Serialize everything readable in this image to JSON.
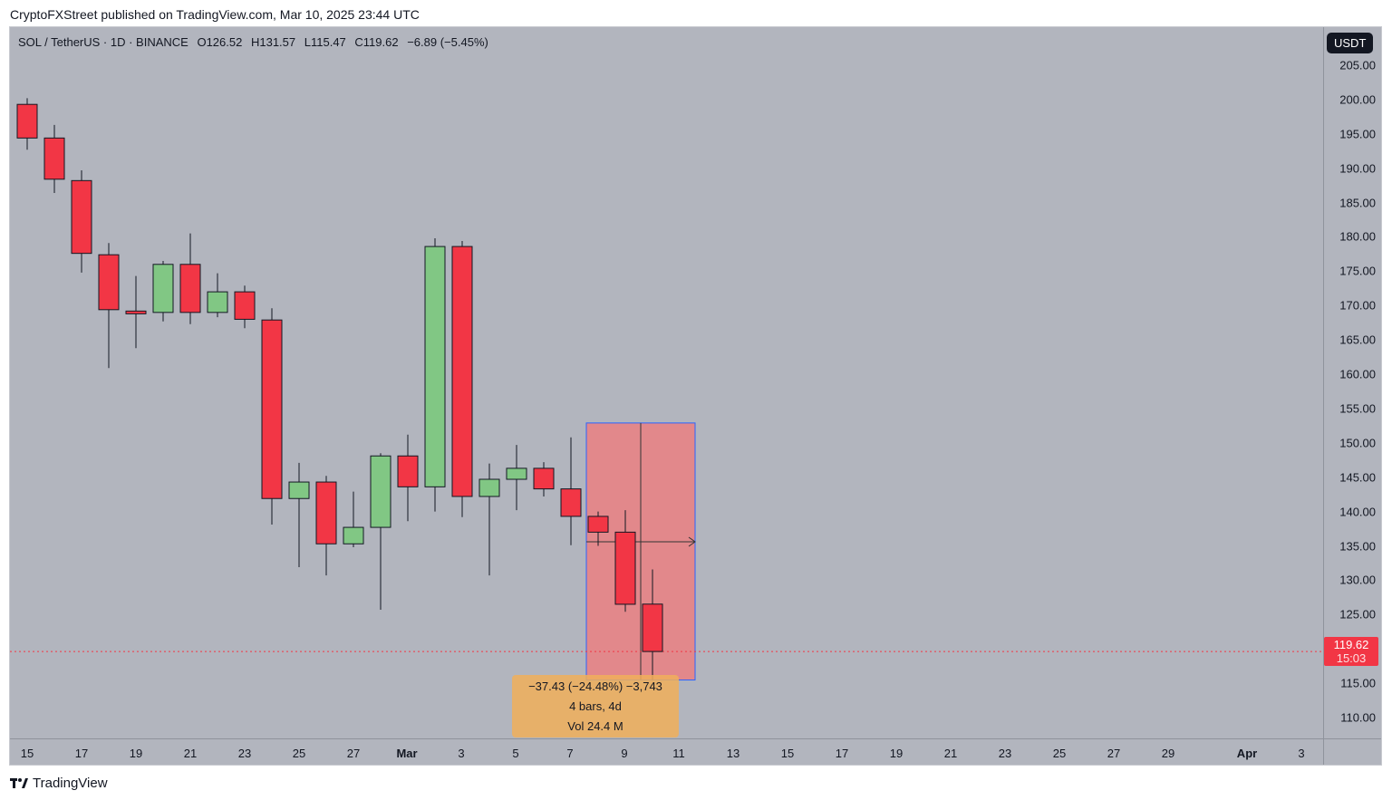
{
  "publisher_line": "CryptoFXStreet published on TradingView.com, Mar 10, 2025 23:44 UTC",
  "legend": {
    "symbol": "SOL / TetherUS · 1D · BINANCE",
    "open": "O126.52",
    "high": "H131.57",
    "low": "L115.47",
    "close": "C119.62",
    "change": "−6.89 (−5.45%)"
  },
  "currency_button": "USDT",
  "last_price": {
    "price": "119.62",
    "countdown": "15:03"
  },
  "measure": {
    "line1": "−37.43 (−24.48%) −3,743",
    "line2": "4 bars, 4d",
    "line3": "Vol 24.4 M"
  },
  "footer_brand": "TradingView",
  "colors": {
    "up": "#81c784",
    "down": "#f23645",
    "background": "#b2b5be",
    "measure_fill": "#f27a7a"
  },
  "chart_data": {
    "type": "candlestick",
    "ylim": [
      107,
      208
    ],
    "price_ticks": [
      "205.00",
      "200.00",
      "195.00",
      "190.00",
      "185.00",
      "180.00",
      "175.00",
      "170.00",
      "165.00",
      "160.00",
      "155.00",
      "150.00",
      "145.00",
      "140.00",
      "135.00",
      "130.00",
      "125.00",
      "120.00",
      "115.00",
      "110.00"
    ],
    "time_ticks": [
      "15",
      "17",
      "19",
      "21",
      "23",
      "25",
      "27",
      "Mar",
      "3",
      "5",
      "7",
      "9",
      "11",
      "13",
      "15",
      "17",
      "19",
      "21",
      "23",
      "25",
      "27",
      "29",
      "Apr",
      "3"
    ],
    "candles": [
      {
        "d": "Feb 15",
        "o": 199.3,
        "h": 200.2,
        "l": 192.7,
        "c": 194.4
      },
      {
        "d": "Feb 16",
        "o": 194.4,
        "h": 196.3,
        "l": 186.4,
        "c": 188.4
      },
      {
        "d": "Feb 17",
        "o": 188.2,
        "h": 189.7,
        "l": 174.8,
        "c": 177.6
      },
      {
        "d": "Feb 18",
        "o": 177.4,
        "h": 179.1,
        "l": 160.9,
        "c": 169.4
      },
      {
        "d": "Feb 19",
        "o": 169.2,
        "h": 174.3,
        "l": 163.8,
        "c": 168.8
      },
      {
        "d": "Feb 20",
        "o": 169.0,
        "h": 176.5,
        "l": 167.7,
        "c": 176.0
      },
      {
        "d": "Feb 21",
        "o": 176.0,
        "h": 180.5,
        "l": 167.3,
        "c": 169.0
      },
      {
        "d": "Feb 22",
        "o": 169.0,
        "h": 174.7,
        "l": 168.3,
        "c": 172.0
      },
      {
        "d": "Feb 23",
        "o": 172.0,
        "h": 172.9,
        "l": 166.7,
        "c": 168.0
      },
      {
        "d": "Feb 24",
        "o": 167.9,
        "h": 169.6,
        "l": 138.1,
        "c": 141.9
      },
      {
        "d": "Feb 25",
        "o": 141.9,
        "h": 147.1,
        "l": 131.9,
        "c": 144.3
      },
      {
        "d": "Feb 26",
        "o": 144.3,
        "h": 145.2,
        "l": 130.7,
        "c": 135.3
      },
      {
        "d": "Feb 27",
        "o": 135.3,
        "h": 142.9,
        "l": 134.8,
        "c": 137.7
      },
      {
        "d": "Feb 28",
        "o": 137.7,
        "h": 148.5,
        "l": 125.7,
        "c": 148.1
      },
      {
        "d": "Mar 1",
        "o": 148.1,
        "h": 151.2,
        "l": 138.6,
        "c": 143.6
      },
      {
        "d": "Mar 2",
        "o": 143.6,
        "h": 179.8,
        "l": 140.0,
        "c": 178.6
      },
      {
        "d": "Mar 3",
        "o": 178.6,
        "h": 179.4,
        "l": 139.2,
        "c": 142.2
      },
      {
        "d": "Mar 4",
        "o": 142.2,
        "h": 147.0,
        "l": 130.7,
        "c": 144.7
      },
      {
        "d": "Mar 5",
        "o": 144.7,
        "h": 149.7,
        "l": 140.2,
        "c": 146.3
      },
      {
        "d": "Mar 6",
        "o": 146.3,
        "h": 147.2,
        "l": 142.2,
        "c": 143.3
      },
      {
        "d": "Mar 7",
        "o": 143.3,
        "h": 150.8,
        "l": 135.1,
        "c": 139.3
      },
      {
        "d": "Mar 8",
        "o": 139.3,
        "h": 140.0,
        "l": 135.0,
        "c": 137.0
      },
      {
        "d": "Mar 9",
        "o": 137.0,
        "h": 140.2,
        "l": 125.4,
        "c": 126.5
      },
      {
        "d": "Mar 10",
        "o": 126.52,
        "h": 131.57,
        "l": 115.47,
        "c": 119.62
      }
    ],
    "measure_range": {
      "from": 152.9,
      "to": 115.47,
      "start": "Mar 6",
      "end": "Mar 10"
    }
  }
}
